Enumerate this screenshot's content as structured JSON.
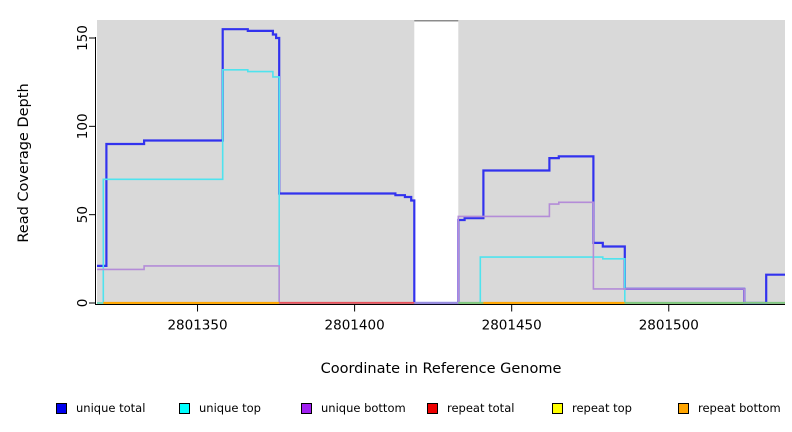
{
  "figure": {
    "x_axis_label": "Coordinate in Reference Genome",
    "y_axis_label": "Read Coverage Depth"
  },
  "legend": {
    "position": "bottom",
    "items": [
      {
        "label": "unique total",
        "color": "#0000EE"
      },
      {
        "label": "unique top",
        "color": "#00FFFF"
      },
      {
        "label": "unique bottom",
        "color": "#A020F0"
      },
      {
        "label": "repeat total",
        "color": "#EE0000"
      },
      {
        "label": "repeat top",
        "color": "#FFFF00"
      },
      {
        "label": "repeat bottom",
        "color": "#FFA500"
      }
    ]
  },
  "chart_data": {
    "type": "line",
    "subtype": "step-coverage",
    "title": "",
    "xlabel": "Coordinate in Reference Genome",
    "ylabel": "Read Coverage Depth",
    "xlim": [
      2801318,
      2801537
    ],
    "ylim": [
      0,
      160
    ],
    "x_ticks": [
      2801350,
      2801400,
      2801450,
      2801500
    ],
    "y_ticks": [
      0,
      50,
      100,
      150
    ],
    "grid": false,
    "plot_background": "#D9D9D9",
    "masked_region": {
      "x_start": 2801419,
      "x_end": 2801433,
      "fill": "#FFFFFF",
      "top_line_color": "#8C8C8C"
    },
    "series": [
      {
        "name": "repeat total",
        "legend_color": "#EE0000",
        "line_color": "#E8505A",
        "width": 1.4,
        "steps": [
          [
            2801318,
            0
          ]
        ]
      },
      {
        "name": "repeat top",
        "legend_color": "#FFFF00",
        "line_color": "#FFFF00",
        "width": 1.4,
        "steps": [
          [
            2801318,
            0
          ]
        ]
      },
      {
        "name": "repeat bottom",
        "legend_color": "#FFA500",
        "line_color": "#FFA500",
        "width": 1.6,
        "steps": [
          [
            2801318,
            0
          ]
        ]
      },
      {
        "name": "unique total",
        "legend_color": "#0000EE",
        "line_color": "#3232EE",
        "width": 2.2,
        "steps": [
          [
            2801318,
            21
          ],
          [
            2801321,
            90
          ],
          [
            2801333,
            92
          ],
          [
            2801358,
            155
          ],
          [
            2801366,
            154
          ],
          [
            2801374,
            152
          ],
          [
            2801375,
            150
          ],
          [
            2801376,
            62
          ],
          [
            2801413,
            61
          ],
          [
            2801416,
            60
          ],
          [
            2801418,
            58
          ],
          [
            2801419,
            0
          ],
          [
            2801433,
            47
          ],
          [
            2801435,
            48
          ],
          [
            2801441,
            75
          ],
          [
            2801462,
            82
          ],
          [
            2801465,
            83
          ],
          [
            2801476,
            34
          ],
          [
            2801479,
            32
          ],
          [
            2801486,
            8
          ],
          [
            2801524,
            0
          ],
          [
            2801531,
            16
          ]
        ]
      },
      {
        "name": "unique top",
        "legend_color": "#00FFFF",
        "line_color": "#4FE3EE",
        "width": 1.6,
        "steps": [
          [
            2801318,
            0
          ],
          [
            2801320,
            70
          ],
          [
            2801358,
            132
          ],
          [
            2801366,
            131
          ],
          [
            2801374,
            128
          ],
          [
            2801376,
            0
          ],
          [
            2801440,
            26
          ],
          [
            2801479,
            25
          ],
          [
            2801486,
            0
          ]
        ]
      },
      {
        "name": "unique bottom",
        "legend_color": "#A020F0",
        "line_color": "#B48CD8",
        "width": 1.6,
        "steps": [
          [
            2801318,
            19
          ],
          [
            2801333,
            21
          ],
          [
            2801376,
            0
          ],
          [
            2801433,
            49
          ],
          [
            2801462,
            56
          ],
          [
            2801465,
            57
          ],
          [
            2801476,
            8
          ],
          [
            2801524,
            0
          ]
        ]
      }
    ],
    "zero_line_segments": [
      {
        "color": "#FFA500",
        "from": 2801320,
        "to": 2801376
      },
      {
        "color": "#E8505A",
        "from": 2801376,
        "to": 2801419
      },
      {
        "color": "#7FC87F",
        "from": 2801433,
        "to": 2801441
      },
      {
        "color": "#FFA500",
        "from": 2801441,
        "to": 2801486
      },
      {
        "color": "#7FC87F",
        "from": 2801486,
        "to": 2801537
      }
    ]
  }
}
